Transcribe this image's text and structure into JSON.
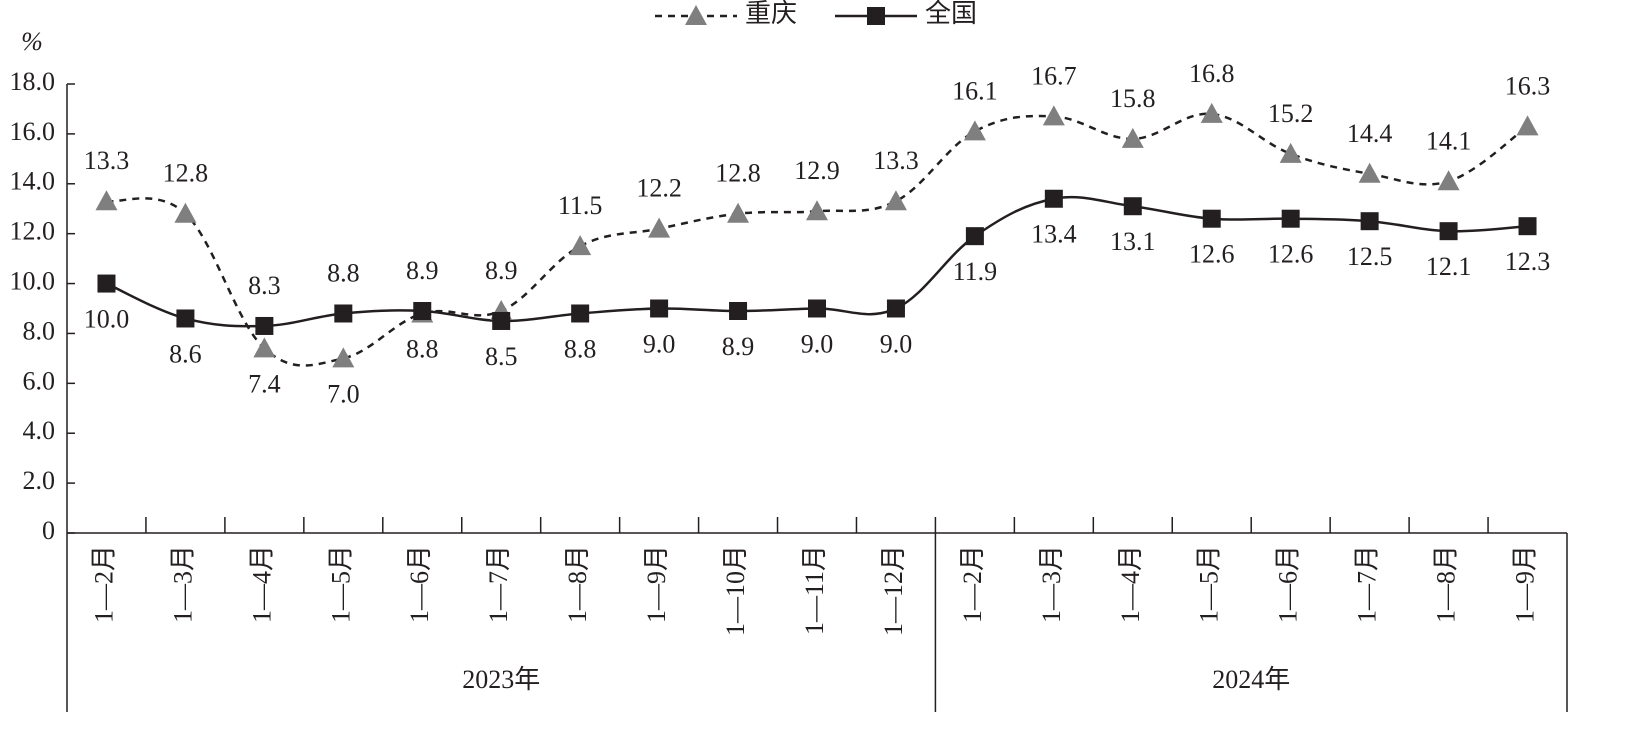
{
  "chart_data": {
    "type": "line",
    "y_unit": "%",
    "categories": [
      "1—2月",
      "1—3月",
      "1—4月",
      "1—5月",
      "1—6月",
      "1—7月",
      "1—8月",
      "1—9月",
      "1—10月",
      "1—11月",
      "1—12月",
      "1—2月",
      "1—3月",
      "1—4月",
      "1—5月",
      "1—6月",
      "1—7月",
      "1—8月",
      "1—9月"
    ],
    "groups": [
      {
        "label": "2023年",
        "count": 11
      },
      {
        "label": "2024年",
        "count": 8
      }
    ],
    "series": [
      {
        "name": "重庆",
        "color": "#7f7f7f",
        "line_style": "dashed",
        "marker": "triangle",
        "values": [
          13.3,
          12.8,
          7.4,
          7.0,
          8.8,
          8.9,
          11.5,
          12.2,
          12.8,
          12.9,
          13.3,
          16.1,
          16.7,
          15.8,
          16.8,
          15.2,
          14.4,
          14.1,
          16.3
        ],
        "value_labels": [
          "13.3",
          "12.8",
          "7.4",
          "7.0",
          "8.8",
          "8.9",
          "11.5",
          "12.2",
          "12.8",
          "12.9",
          "13.3",
          "16.1",
          "16.7",
          "15.8",
          "16.8",
          "15.2",
          "14.4",
          "14.1",
          "16.3"
        ]
      },
      {
        "name": "全国",
        "color": "#231f20",
        "line_style": "solid",
        "marker": "square",
        "values": [
          10.0,
          8.6,
          8.3,
          8.8,
          8.9,
          8.5,
          8.8,
          9.0,
          8.9,
          9.0,
          9.0,
          11.9,
          13.4,
          13.1,
          12.6,
          12.6,
          12.5,
          12.1,
          12.3
        ],
        "value_labels": [
          "10.0",
          "8.6",
          "8.3",
          "8.8",
          "8.9",
          "8.5",
          "8.8",
          "9.0",
          "8.9",
          "9.0",
          "9.0",
          "11.9",
          "13.4",
          "13.1",
          "12.6",
          "12.6",
          "12.5",
          "12.1",
          "12.3"
        ]
      }
    ],
    "ylim": [
      0,
      18
    ],
    "yticks": [
      0,
      {
        "value": 2,
        "label": "2.0"
      },
      {
        "value": 4,
        "label": "4.0"
      },
      {
        "value": 6,
        "label": "6.0"
      },
      {
        "value": 8,
        "label": "8.0"
      },
      {
        "value": 10,
        "label": "10.0"
      },
      {
        "value": 12,
        "label": "12.0"
      },
      {
        "value": 14,
        "label": "14.0"
      },
      {
        "value": 16,
        "label": "16.0"
      },
      {
        "value": 18,
        "label": "18.0"
      }
    ],
    "grid": false
  }
}
